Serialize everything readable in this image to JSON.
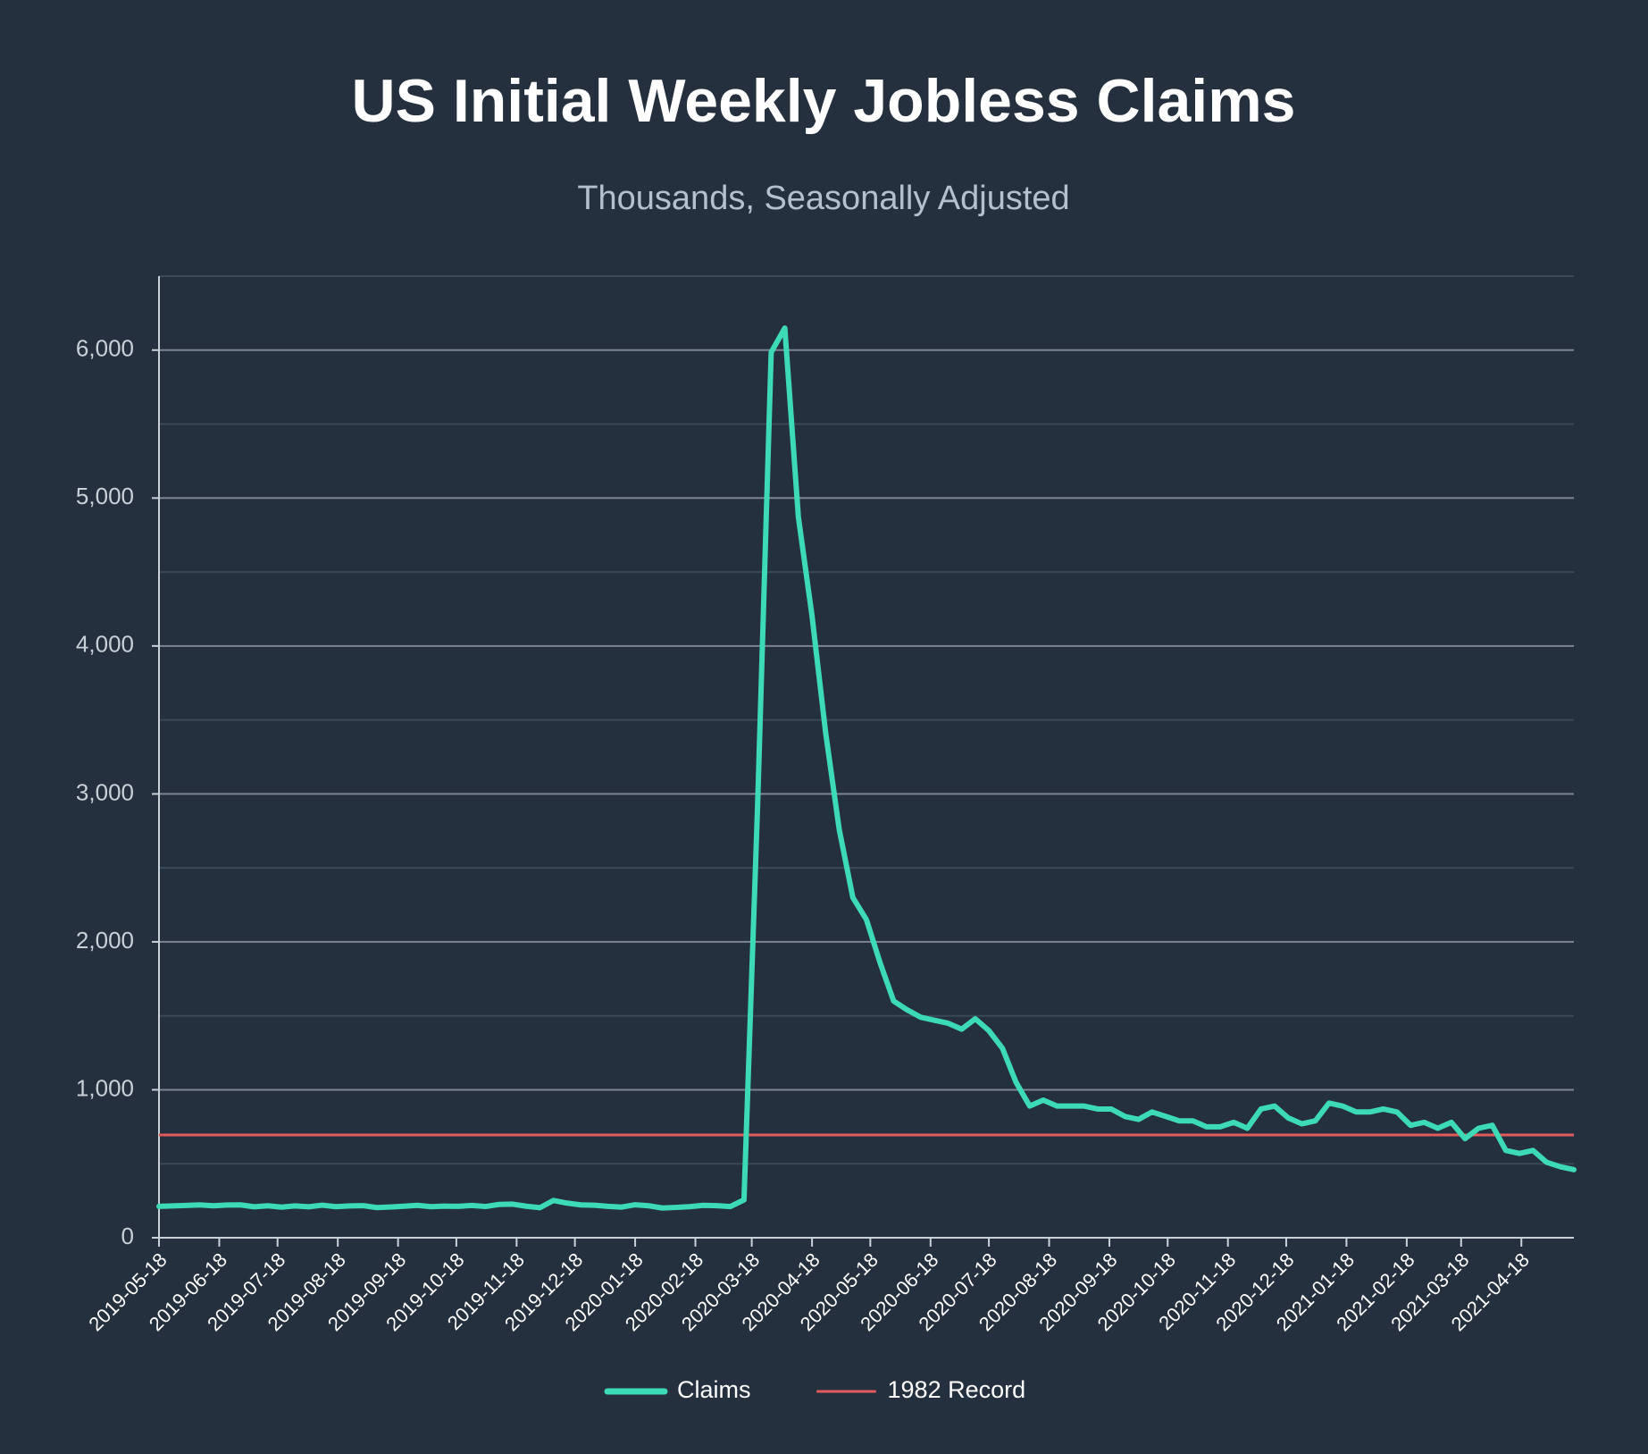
{
  "chart_data": {
    "type": "line",
    "title": "US Initial Weekly Jobless Claims",
    "subtitle": "Thousands, Seasonally Adjusted",
    "x": [
      "2019-05-18",
      "2019-05-25",
      "2019-06-01",
      "2019-06-08",
      "2019-06-15",
      "2019-06-22",
      "2019-06-29",
      "2019-07-06",
      "2019-07-13",
      "2019-07-20",
      "2019-07-27",
      "2019-08-03",
      "2019-08-10",
      "2019-08-17",
      "2019-08-24",
      "2019-08-31",
      "2019-09-07",
      "2019-09-14",
      "2019-09-21",
      "2019-09-28",
      "2019-10-05",
      "2019-10-12",
      "2019-10-19",
      "2019-10-26",
      "2019-11-02",
      "2019-11-09",
      "2019-11-16",
      "2019-11-23",
      "2019-11-30",
      "2019-12-07",
      "2019-12-14",
      "2019-12-21",
      "2019-12-28",
      "2020-01-04",
      "2020-01-11",
      "2020-01-18",
      "2020-01-25",
      "2020-02-01",
      "2020-02-08",
      "2020-02-15",
      "2020-02-22",
      "2020-02-29",
      "2020-03-07",
      "2020-03-14",
      "2020-03-21",
      "2020-03-28",
      "2020-04-04",
      "2020-04-11",
      "2020-04-18",
      "2020-04-25",
      "2020-05-02",
      "2020-05-09",
      "2020-05-16",
      "2020-05-23",
      "2020-05-30",
      "2020-06-06",
      "2020-06-13",
      "2020-06-20",
      "2020-06-27",
      "2020-07-04",
      "2020-07-11",
      "2020-07-18",
      "2020-07-25",
      "2020-08-01",
      "2020-08-08",
      "2020-08-15",
      "2020-08-22",
      "2020-08-29",
      "2020-09-05",
      "2020-09-12",
      "2020-09-19",
      "2020-09-26",
      "2020-10-03",
      "2020-10-10",
      "2020-10-17",
      "2020-10-24",
      "2020-10-31",
      "2020-11-07",
      "2020-11-14",
      "2020-11-21",
      "2020-11-28",
      "2020-12-05",
      "2020-12-12",
      "2020-12-19",
      "2020-12-26",
      "2021-01-02",
      "2021-01-09",
      "2021-01-16",
      "2021-01-23",
      "2021-01-30",
      "2021-02-06",
      "2021-02-13",
      "2021-02-20",
      "2021-02-27",
      "2021-03-06",
      "2021-03-13",
      "2021-03-20",
      "2021-03-27",
      "2021-04-03",
      "2021-04-10",
      "2021-04-17",
      "2021-04-24",
      "2021-05-01",
      "2021-05-08",
      "2021-05-15"
    ],
    "series": [
      {
        "name": "Claims",
        "color": "#3ddbb5",
        "values": [
          212,
          215,
          218,
          222,
          216,
          221,
          222,
          209,
          216,
          207,
          215,
          209,
          220,
          210,
          215,
          217,
          204,
          208,
          213,
          219,
          210,
          214,
          212,
          218,
          211,
          225,
          227,
          213,
          203,
          252,
          234,
          222,
          220,
          212,
          207,
          223,
          216,
          201,
          205,
          210,
          219,
          217,
          211,
          256,
          2920,
          5985,
          6149,
          4870,
          4204,
          3415,
          2760,
          2300,
          2150,
          1860,
          1600,
          1540,
          1490,
          1470,
          1450,
          1410,
          1480,
          1400,
          1280,
          1050,
          890,
          930,
          890,
          890,
          890,
          870,
          870,
          820,
          800,
          850,
          820,
          790,
          790,
          750,
          750,
          780,
          740,
          870,
          890,
          810,
          770,
          790,
          910,
          890,
          850,
          850,
          870,
          850,
          760,
          780,
          740,
          780,
          670,
          740,
          760,
          590,
          570,
          590,
          510,
          480,
          460
        ]
      }
    ],
    "reference_line": {
      "name": "1982 Record",
      "value": 695,
      "color": "#e35a5a"
    },
    "xlim": [
      "2019-05-18",
      "2021-05-15"
    ],
    "xticks": [
      "2019-05-18",
      "2019-06-18",
      "2019-07-18",
      "2019-08-18",
      "2019-09-18",
      "2019-10-18",
      "2019-11-18",
      "2019-12-18",
      "2020-01-18",
      "2020-02-18",
      "2020-03-18",
      "2020-04-18",
      "2020-05-18",
      "2020-06-18",
      "2020-07-18",
      "2020-08-18",
      "2020-09-18",
      "2020-10-18",
      "2020-11-18",
      "2020-12-18",
      "2021-01-18",
      "2021-02-18",
      "2021-03-18",
      "2021-04-18"
    ],
    "ylim": [
      0,
      6500
    ],
    "yticks": [
      0,
      {
        "value": 1000,
        "label": "1,000"
      },
      {
        "value": 2000,
        "label": "2,000"
      },
      {
        "value": 3000,
        "label": "3,000"
      },
      {
        "value": 4000,
        "label": "4,000"
      },
      {
        "value": 5000,
        "label": "5,000"
      },
      {
        "value": 6000,
        "label": "6,000"
      }
    ],
    "minor_yticks": [
      500,
      1500,
      2500,
      3500,
      4500,
      5500,
      6500
    ],
    "grid": true,
    "legend": "bottom"
  }
}
